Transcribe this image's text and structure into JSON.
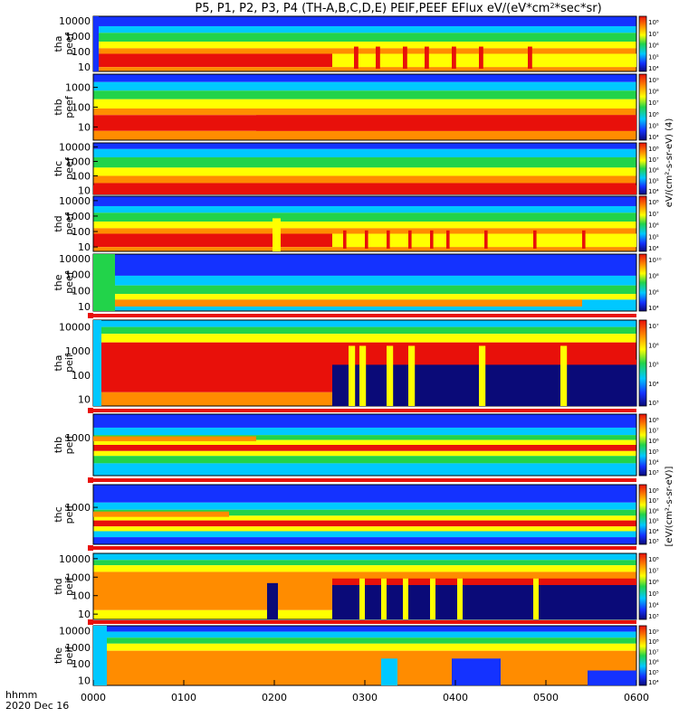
{
  "title": "P5, P1, P2, P3, P4 (TH-A,B,C,D,E) PEIF,PEEF EFlux eV/(eV*cm",
  "title_sup": "2",
  "title_end": "*sec*sr)",
  "xaxis": {
    "label_top": "hhmm",
    "label_bottom": "2020 Dec 16",
    "ticks": [
      "0000",
      "0100",
      "0200",
      "0300",
      "0400",
      "0500",
      "0600"
    ],
    "range_hours": [
      0,
      6
    ]
  },
  "colorbar_units_label": "eV/(cm²-s-sr-eV) (4)",
  "colorbar_units_label_ion": "[eV/(cm²-s-sr-eV)]",
  "colors": {
    "red": "#e8100a",
    "orange": "#ff8c00",
    "yellow": "#ffff00",
    "green": "#22d34a",
    "cyan": "#00c8ff",
    "blue": "#1432ff",
    "navy": "#0a0a78"
  },
  "chart_data": {
    "type": "heatmap",
    "panels": [
      {
        "name": "tha_peef",
        "label_a": "tha",
        "label_b": "peef",
        "yticks": [
          "10000",
          "1000",
          "100",
          "10"
        ],
        "cbar_ticks": [
          "10⁸",
          "10⁷",
          "10⁶",
          "10⁵",
          "10⁴"
        ]
      },
      {
        "name": "thb_peef",
        "label_a": "thb",
        "label_b": "peef",
        "yticks": [
          "1000",
          "100",
          "10"
        ],
        "cbar_ticks": [
          "10⁹",
          "10⁸",
          "10⁷",
          "10⁶",
          "10⁵",
          "10⁴"
        ]
      },
      {
        "name": "thc_peef",
        "label_a": "thc",
        "label_b": "peef",
        "yticks": [
          "10000",
          "1000",
          "100",
          "10"
        ],
        "cbar_ticks": [
          "10⁸",
          "10⁷",
          "10⁶",
          "10⁵",
          "10⁴"
        ]
      },
      {
        "name": "thd_peef",
        "label_a": "thd",
        "label_b": "peef",
        "yticks": [
          "10000",
          "1000",
          "100",
          "10"
        ],
        "cbar_ticks": [
          "10⁸",
          "10⁷",
          "10⁶",
          "10⁵",
          "10⁴"
        ]
      },
      {
        "name": "the_peef",
        "label_a": "the",
        "label_b": "peef",
        "yticks": [
          "10000",
          "1000",
          "100",
          "10"
        ],
        "cbar_ticks": [
          "10¹⁰",
          "10⁸",
          "10⁶",
          "10⁴"
        ]
      },
      {
        "name": "tha_peif",
        "label_a": "tha",
        "label_b": "peif",
        "yticks": [
          "10000",
          "1000",
          "100",
          "10"
        ],
        "cbar_ticks": [
          "10⁷",
          "10⁶",
          "10⁵",
          "10⁴",
          "10³"
        ]
      },
      {
        "name": "thb_peif",
        "label_a": "thb",
        "label_b": "peif",
        "yticks": [
          "1000"
        ],
        "cbar_ticks": [
          "10⁸",
          "10⁷",
          "10⁶",
          "10⁵",
          "10⁴",
          "10³"
        ]
      },
      {
        "name": "thc_peif",
        "label_a": "thc",
        "label_b": "peif",
        "yticks": [
          "1000"
        ],
        "cbar_ticks": [
          "10⁸",
          "10⁷",
          "10⁶",
          "10⁵",
          "10⁴",
          "10³"
        ]
      },
      {
        "name": "thd_peif",
        "label_a": "thd",
        "label_b": "peif",
        "yticks": [
          "10000",
          "1000",
          "100",
          "10"
        ],
        "cbar_ticks": [
          "10⁸",
          "10⁷",
          "10⁶",
          "10⁵",
          "10⁴",
          "10³"
        ]
      },
      {
        "name": "the_peif",
        "label_a": "the",
        "label_b": "peif",
        "yticks": [
          "10000",
          "1000",
          "100",
          "10"
        ],
        "cbar_ticks": [
          "10⁹",
          "10⁸",
          "10⁷",
          "10⁶",
          "10⁵",
          "10⁴"
        ]
      }
    ]
  }
}
